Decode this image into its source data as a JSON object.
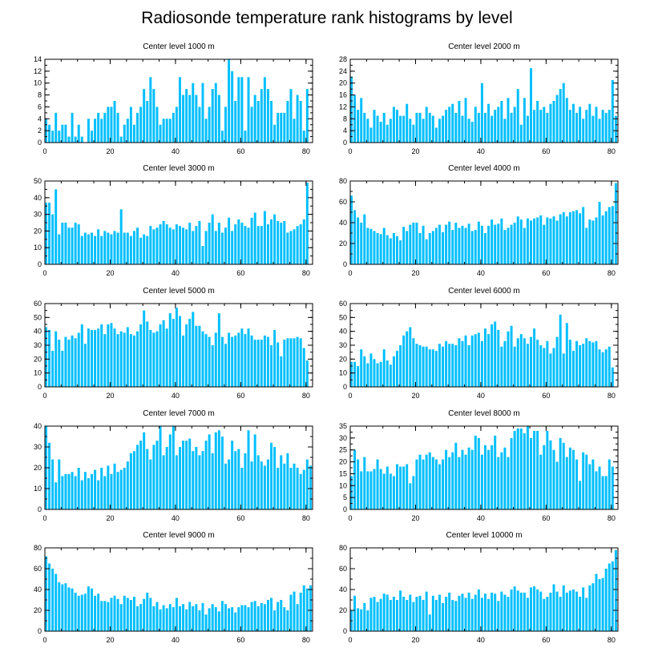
{
  "title": "Radiosonde temperature rank histograms by level",
  "colors": {
    "bar": "#00bfff",
    "axis": "#000000"
  },
  "chart_data": [
    {
      "type": "bar",
      "title": "Center level 1000 m",
      "xlim": [
        0,
        82
      ],
      "ylim": [
        0,
        14
      ],
      "xticks": [
        0,
        20,
        40,
        60,
        80
      ],
      "yticks": [
        0,
        2,
        4,
        6,
        8,
        10,
        12,
        14
      ],
      "values": [
        4,
        3,
        2,
        5,
        2,
        3,
        3,
        1,
        5,
        1,
        3,
        1,
        0,
        4,
        2,
        4,
        5,
        4,
        5,
        6,
        6,
        7,
        5,
        1,
        3,
        4,
        6,
        3,
        5,
        6,
        9,
        7,
        11,
        9,
        6,
        3,
        4,
        4,
        4,
        5,
        6,
        11,
        8,
        9,
        8,
        10,
        8,
        6,
        10,
        4,
        6,
        9,
        10,
        8,
        2,
        6,
        14,
        12,
        7,
        11,
        11,
        2,
        11,
        6,
        8,
        7,
        9,
        11,
        9,
        7,
        3,
        5,
        5,
        5,
        7,
        9,
        4,
        8,
        7,
        2,
        9
      ]
    },
    {
      "type": "bar",
      "title": "Center level 2000 m",
      "xlim": [
        0,
        82
      ],
      "ylim": [
        0,
        28
      ],
      "xticks": [
        0,
        20,
        40,
        60,
        80
      ],
      "yticks": [
        0,
        4,
        8,
        12,
        16,
        20,
        24,
        28
      ],
      "values": [
        22,
        16,
        11,
        15,
        10,
        8,
        5,
        11,
        9,
        7,
        10,
        6,
        8,
        12,
        11,
        9,
        9,
        13,
        8,
        6,
        10,
        10,
        8,
        12,
        10,
        9,
        5,
        8,
        9,
        11,
        12,
        13,
        10,
        14,
        9,
        15,
        8,
        7,
        12,
        10,
        20,
        10,
        13,
        9,
        11,
        12,
        14,
        8,
        15,
        10,
        12,
        18,
        6,
        15,
        9,
        25,
        11,
        14,
        11,
        12,
        10,
        13,
        14,
        16,
        18,
        20,
        15,
        11,
        13,
        10,
        12,
        8,
        11,
        13,
        9,
        12,
        8,
        11,
        10,
        11,
        21,
        9
      ]
    },
    {
      "type": "bar",
      "title": "Center level 3000 m",
      "xlim": [
        0,
        82
      ],
      "ylim": [
        0,
        50
      ],
      "xticks": [
        0,
        20,
        40,
        60,
        80
      ],
      "yticks": [
        0,
        10,
        20,
        30,
        40,
        50
      ],
      "values": [
        37,
        37,
        30,
        45,
        18,
        25,
        25,
        22,
        22,
        25,
        24,
        17,
        19,
        18,
        19,
        17,
        21,
        17,
        20,
        19,
        18,
        20,
        19,
        33,
        19,
        19,
        17,
        20,
        22,
        16,
        18,
        17,
        23,
        21,
        22,
        24,
        26,
        24,
        22,
        21,
        24,
        23,
        22,
        21,
        25,
        20,
        23,
        26,
        11,
        20,
        25,
        30,
        20,
        25,
        19,
        22,
        28,
        20,
        24,
        27,
        25,
        23,
        22,
        28,
        31,
        23,
        23,
        32,
        24,
        27,
        30,
        26,
        25,
        26,
        19,
        20,
        21,
        23,
        24,
        27,
        49
      ]
    },
    {
      "type": "bar",
      "title": "Center level 4000 m",
      "xlim": [
        0,
        82
      ],
      "ylim": [
        0,
        80
      ],
      "xticks": [
        0,
        20,
        40,
        60,
        80
      ],
      "yticks": [
        0,
        20,
        40,
        60,
        80
      ],
      "values": [
        66,
        52,
        45,
        40,
        48,
        35,
        34,
        32,
        30,
        29,
        35,
        28,
        25,
        30,
        27,
        23,
        36,
        32,
        38,
        40,
        40,
        30,
        37,
        24,
        30,
        32,
        35,
        38,
        31,
        38,
        41,
        33,
        40,
        35,
        37,
        35,
        39,
        32,
        33,
        41,
        37,
        30,
        37,
        43,
        38,
        39,
        44,
        33,
        35,
        38,
        40,
        46,
        43,
        35,
        44,
        42,
        44,
        45,
        47,
        38,
        45,
        44,
        46,
        42,
        48,
        50,
        46,
        50,
        51,
        52,
        49,
        55,
        35,
        43,
        42,
        45,
        60,
        47,
        51,
        55,
        56,
        78
      ]
    },
    {
      "type": "bar",
      "title": "Center level 5000 m",
      "xlim": [
        0,
        82
      ],
      "ylim": [
        0,
        60
      ],
      "xticks": [
        0,
        20,
        40,
        60,
        80
      ],
      "yticks": [
        0,
        10,
        20,
        30,
        40,
        50,
        60
      ],
      "values": [
        43,
        41,
        26,
        40,
        34,
        26,
        36,
        34,
        37,
        35,
        39,
        45,
        31,
        42,
        41,
        41,
        42,
        45,
        38,
        45,
        46,
        42,
        38,
        40,
        39,
        43,
        38,
        37,
        40,
        45,
        55,
        47,
        41,
        39,
        40,
        45,
        48,
        42,
        53,
        49,
        57,
        51,
        37,
        45,
        49,
        54,
        44,
        44,
        40,
        38,
        36,
        30,
        39,
        53,
        36,
        31,
        39,
        36,
        37,
        39,
        42,
        38,
        42,
        37,
        34,
        34,
        34,
        37,
        36,
        30,
        41,
        32,
        22,
        34,
        35,
        35,
        35,
        36,
        35,
        28,
        19
      ]
    },
    {
      "type": "bar",
      "title": "Center level 6000 m",
      "xlim": [
        0,
        82
      ],
      "ylim": [
        0,
        60
      ],
      "xticks": [
        0,
        20,
        40,
        60,
        80
      ],
      "yticks": [
        0,
        10,
        20,
        30,
        40,
        50,
        60
      ],
      "values": [
        18,
        18,
        15,
        27,
        22,
        17,
        24,
        20,
        17,
        18,
        27,
        19,
        16,
        22,
        26,
        30,
        37,
        40,
        43,
        35,
        31,
        30,
        29,
        29,
        27,
        27,
        26,
        31,
        29,
        33,
        31,
        31,
        30,
        35,
        33,
        37,
        30,
        37,
        38,
        39,
        33,
        42,
        38,
        45,
        47,
        41,
        29,
        33,
        40,
        44,
        29,
        35,
        38,
        35,
        31,
        36,
        42,
        34,
        30,
        28,
        33,
        24,
        28,
        36,
        52,
        24,
        46,
        34,
        26,
        33,
        30,
        31,
        35,
        33,
        32,
        33,
        27,
        25,
        27,
        29,
        14
      ]
    },
    {
      "type": "bar",
      "title": "Center level 7000 m",
      "xlim": [
        0,
        82
      ],
      "ylim": [
        0,
        40
      ],
      "xticks": [
        0,
        20,
        40,
        60,
        80
      ],
      "yticks": [
        0,
        10,
        20,
        30,
        40
      ],
      "values": [
        40,
        32,
        24,
        13,
        24,
        16,
        17,
        17,
        18,
        16,
        20,
        14,
        18,
        15,
        17,
        19,
        14,
        20,
        16,
        21,
        17,
        22,
        18,
        19,
        20,
        23,
        27,
        28,
        31,
        33,
        37,
        29,
        24,
        31,
        33,
        40,
        26,
        30,
        36,
        40,
        26,
        30,
        33,
        33,
        34,
        28,
        30,
        26,
        28,
        33,
        36,
        27,
        37,
        38,
        35,
        22,
        24,
        33,
        28,
        29,
        20,
        27,
        38,
        23,
        36,
        26,
        23,
        21,
        24,
        32,
        30,
        20,
        26,
        22,
        27,
        20,
        22,
        20,
        17,
        19,
        24,
        21
      ]
    },
    {
      "type": "bar",
      "title": "Center level 8000 m",
      "xlim": [
        0,
        82
      ],
      "ylim": [
        0,
        35
      ],
      "xticks": [
        0,
        20,
        40,
        60,
        80
      ],
      "yticks": [
        0,
        5,
        10,
        15,
        20,
        25,
        30,
        35
      ],
      "values": [
        14,
        25,
        21,
        16,
        22,
        16,
        16,
        17,
        21,
        17,
        15,
        18,
        15,
        14,
        19,
        18,
        18,
        19,
        11,
        14,
        21,
        23,
        21,
        23,
        24,
        22,
        21,
        19,
        21,
        25,
        22,
        24,
        28,
        22,
        25,
        23,
        26,
        25,
        31,
        30,
        23,
        27,
        25,
        27,
        31,
        22,
        24,
        26,
        22,
        30,
        33,
        34,
        34,
        32,
        35,
        30,
        33,
        33,
        23,
        27,
        33,
        29,
        25,
        20,
        30,
        28,
        22,
        26,
        25,
        21,
        12,
        24,
        23,
        19,
        21,
        16,
        18,
        14,
        14,
        21,
        18
      ]
    },
    {
      "type": "bar",
      "title": "Center level 9000 m",
      "xlim": [
        0,
        82
      ],
      "ylim": [
        0,
        80
      ],
      "xticks": [
        0,
        20,
        40,
        60,
        80
      ],
      "yticks": [
        0,
        20,
        40,
        60,
        80
      ],
      "values": [
        72,
        65,
        60,
        55,
        47,
        45,
        46,
        42,
        41,
        37,
        34,
        35,
        36,
        43,
        41,
        34,
        36,
        29,
        29,
        28,
        32,
        34,
        31,
        26,
        34,
        32,
        30,
        33,
        24,
        26,
        31,
        37,
        32,
        24,
        28,
        21,
        25,
        22,
        26,
        23,
        32,
        24,
        26,
        21,
        28,
        24,
        26,
        20,
        27,
        16,
        22,
        26,
        23,
        19,
        29,
        26,
        22,
        23,
        18,
        23,
        25,
        25,
        23,
        28,
        29,
        24,
        27,
        26,
        30,
        32,
        20,
        28,
        30,
        23,
        20,
        35,
        38,
        26,
        37,
        44,
        41,
        44
      ]
    },
    {
      "type": "bar",
      "title": "Center level 10000 m",
      "xlim": [
        0,
        82
      ],
      "ylim": [
        0,
        80
      ],
      "xticks": [
        0,
        20,
        40,
        60,
        80
      ],
      "yticks": [
        0,
        20,
        40,
        60,
        80
      ],
      "values": [
        20,
        34,
        22,
        21,
        27,
        20,
        32,
        33,
        28,
        31,
        36,
        35,
        30,
        33,
        30,
        39,
        33,
        30,
        35,
        28,
        33,
        34,
        30,
        38,
        16,
        34,
        30,
        35,
        27,
        33,
        37,
        30,
        29,
        34,
        36,
        32,
        37,
        31,
        35,
        40,
        32,
        36,
        31,
        37,
        36,
        29,
        38,
        35,
        33,
        40,
        43,
        39,
        37,
        37,
        32,
        42,
        43,
        40,
        38,
        31,
        33,
        37,
        45,
        38,
        33,
        44,
        37,
        39,
        40,
        38,
        33,
        42,
        32,
        44,
        46,
        55,
        50,
        51,
        60,
        65,
        67,
        78
      ]
    }
  ]
}
